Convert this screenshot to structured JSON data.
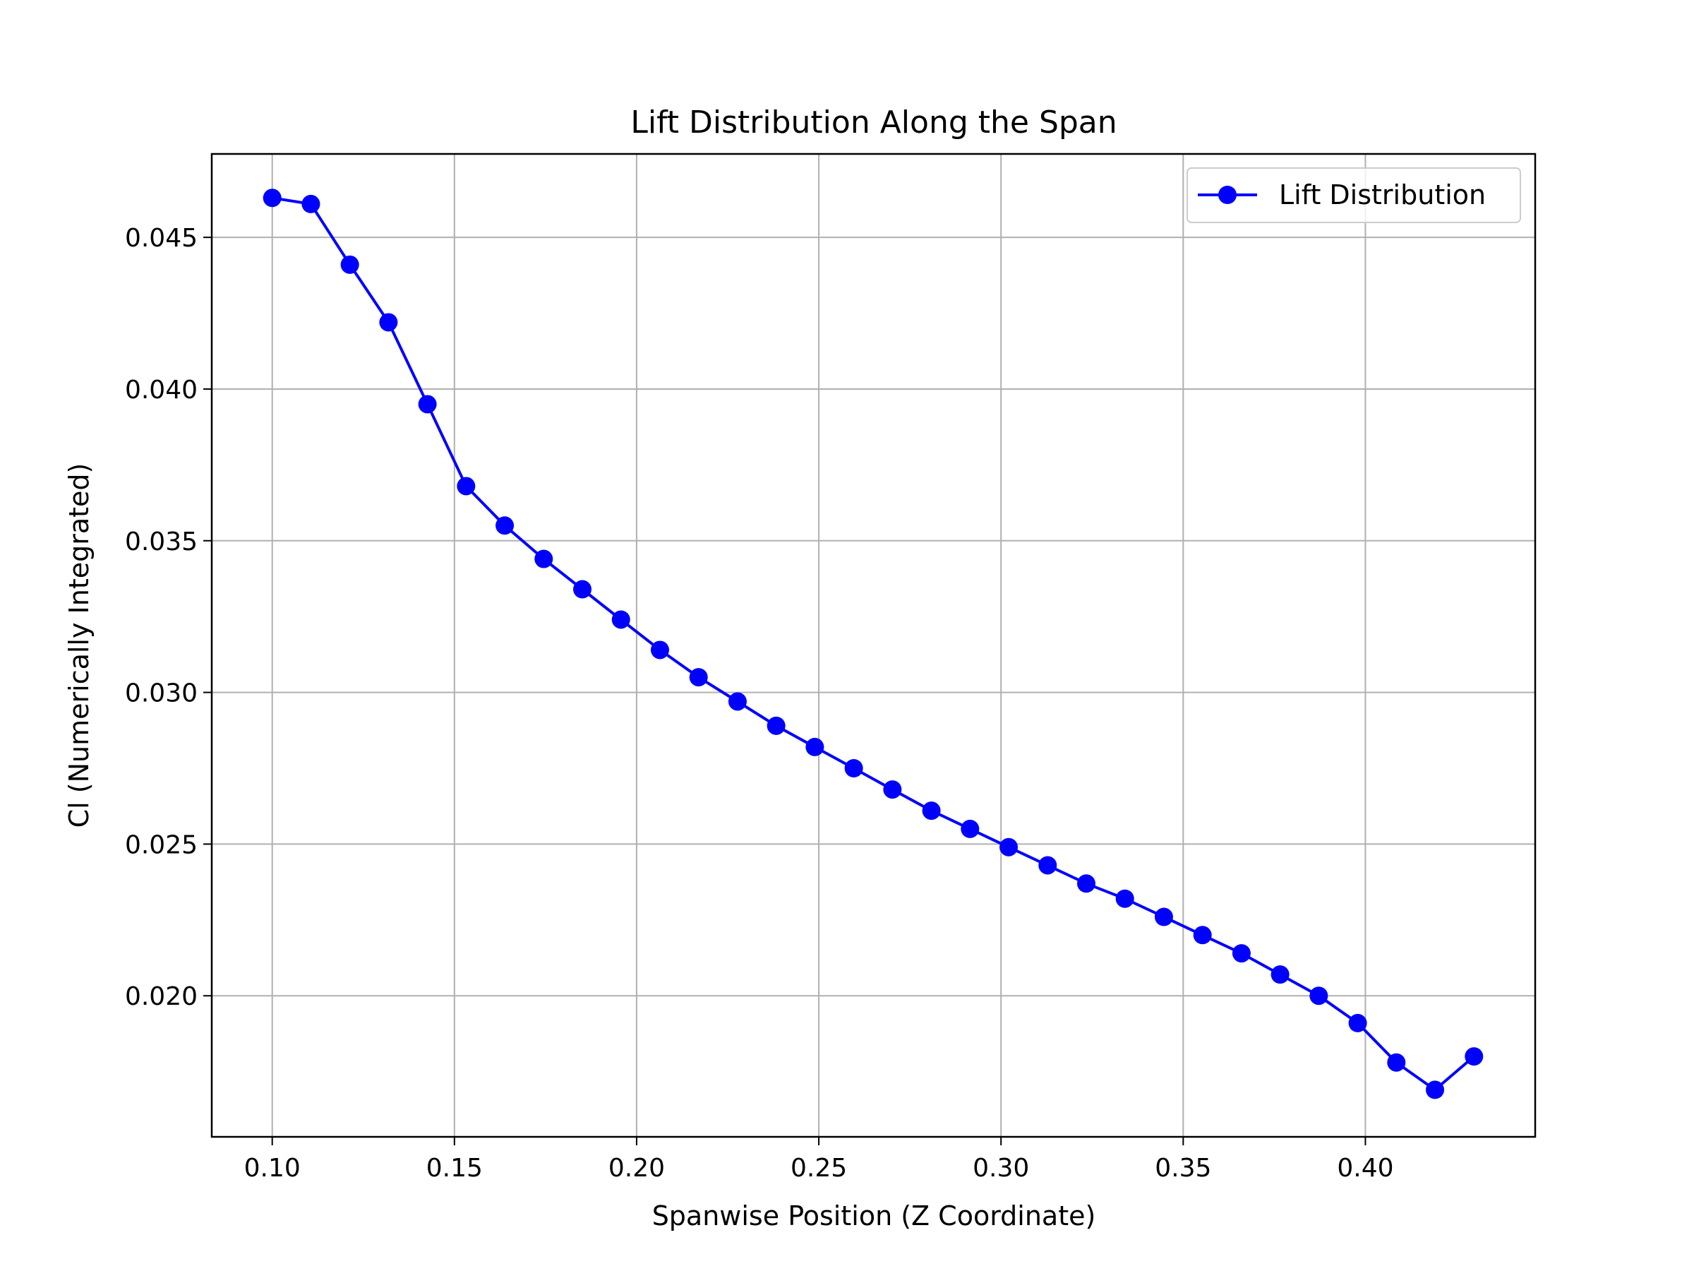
{
  "chart_data": {
    "type": "line",
    "title": "Lift Distribution Along the Span",
    "xlabel": "Spanwise Position (Z Coordinate)",
    "ylabel": "Cl (Numerically Integrated)",
    "xlim": [
      0.0834,
      0.4466
    ],
    "ylim": [
      0.01535,
      0.04775
    ],
    "x_ticks": [
      {
        "value": 0.1,
        "label": "0.10"
      },
      {
        "value": 0.15,
        "label": "0.15"
      },
      {
        "value": 0.2,
        "label": "0.20"
      },
      {
        "value": 0.25,
        "label": "0.25"
      },
      {
        "value": 0.3,
        "label": "0.30"
      },
      {
        "value": 0.35,
        "label": "0.35"
      },
      {
        "value": 0.4,
        "label": "0.40"
      }
    ],
    "y_ticks": [
      {
        "value": 0.02,
        "label": "0.020"
      },
      {
        "value": 0.025,
        "label": "0.025"
      },
      {
        "value": 0.03,
        "label": "0.030"
      },
      {
        "value": 0.035,
        "label": "0.035"
      },
      {
        "value": 0.04,
        "label": "0.040"
      },
      {
        "value": 0.045,
        "label": "0.045"
      }
    ],
    "grid": true,
    "legend_position": "top-right",
    "series": [
      {
        "name": "Lift Distribution",
        "color": "#0000ff",
        "marker": "circle",
        "x": [
          0.1,
          0.1106,
          0.1213,
          0.1319,
          0.1426,
          0.1532,
          0.1638,
          0.1745,
          0.1851,
          0.1957,
          0.2064,
          0.217,
          0.2277,
          0.2383,
          0.2489,
          0.2596,
          0.2702,
          0.2809,
          0.2915,
          0.3021,
          0.3128,
          0.3234,
          0.334,
          0.3447,
          0.3553,
          0.366,
          0.3766,
          0.3872,
          0.3979,
          0.4085,
          0.4191,
          0.4298
        ],
        "y": [
          0.0463,
          0.0461,
          0.0441,
          0.0422,
          0.0395,
          0.0368,
          0.0355,
          0.0344,
          0.0334,
          0.0324,
          0.0314,
          0.0305,
          0.0297,
          0.0289,
          0.0282,
          0.0275,
          0.0268,
          0.0261,
          0.0255,
          0.0249,
          0.0243,
          0.0237,
          0.0232,
          0.0226,
          0.022,
          0.0214,
          0.0207,
          0.02,
          0.0191,
          0.0178,
          0.0169,
          0.018
        ]
      }
    ]
  }
}
